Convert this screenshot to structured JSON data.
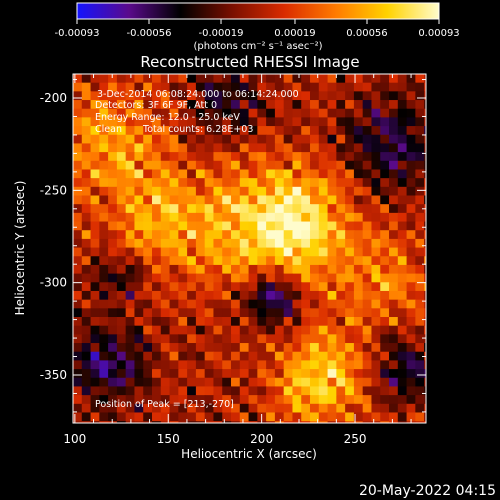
{
  "chart_data": {
    "type": "heatmap",
    "title": "Reconstructed RHESSI Image",
    "xlabel": "Heliocentric X (arcsec)",
    "ylabel": "Heliocentric Y (arcsec)",
    "xlim": [
      99,
      288
    ],
    "ylim": [
      -376,
      -187
    ],
    "xticks": [
      100,
      150,
      200,
      250
    ],
    "yticks": [
      -200,
      -250,
      -300,
      -350
    ],
    "colorbar": {
      "label": "(photons cm⁻² s⁻¹ asec⁻²)",
      "range": [
        -0.00093,
        0.00093
      ],
      "ticks": [
        "-0.00093",
        "-0.00056",
        "-0.00019",
        "0.00019",
        "0.00056",
        "0.00093"
      ],
      "colors": [
        "#1414ff",
        "#5a0a8c",
        "#000000",
        "#7a0f00",
        "#d92b00",
        "#ff7a00",
        "#ffd200",
        "#fffccc"
      ]
    },
    "annotations": {
      "time_range": "3-Dec-2014 06:08:24.000 to 06:14:24.000",
      "detectors": "Detectors: 3F 6F 9F, Att 0",
      "energy_range": "Energy Range: 12.0 - 25.0 keV",
      "method": "Clean",
      "total_counts": "Total counts: 6.28E+03",
      "peak": "Position of Peak = [213,-270]"
    },
    "peak_position": [
      213,
      -270
    ],
    "sources": [
      {
        "x": 213,
        "y": -270,
        "sigma": 24,
        "amp": 1.0
      },
      {
        "x": 233,
        "y": -352,
        "sigma": 18,
        "amp": 0.75
      },
      {
        "x": 150,
        "y": -268,
        "sigma": 22,
        "amp": 0.55
      },
      {
        "x": 118,
        "y": -222,
        "sigma": 22,
        "amp": 0.5
      },
      {
        "x": 268,
        "y": -300,
        "sigma": 16,
        "amp": 0.4
      }
    ],
    "negative_regions": [
      {
        "x": 206,
        "y": -308,
        "sigma": 11,
        "amp": 0.9
      },
      {
        "x": 118,
        "y": -345,
        "sigma": 15,
        "amp": 0.6
      },
      {
        "x": 268,
        "y": -225,
        "sigma": 17,
        "amp": 0.6
      },
      {
        "x": 180,
        "y": -202,
        "sigma": 13,
        "amp": 0.5
      },
      {
        "x": 275,
        "y": -348,
        "sigma": 13,
        "amp": 0.5
      },
      {
        "x": 125,
        "y": -296,
        "sigma": 11,
        "amp": 0.45
      }
    ]
  },
  "footer": {
    "timestamp": "20-May-2022 04:15"
  }
}
